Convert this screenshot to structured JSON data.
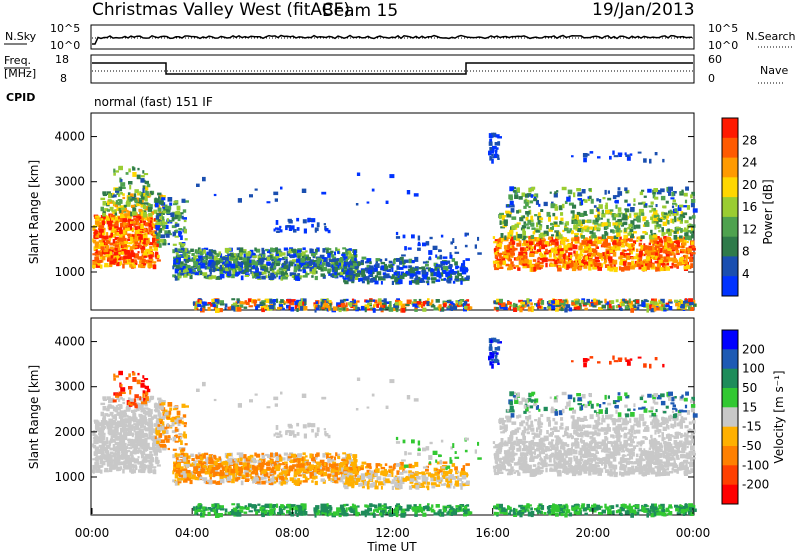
{
  "header": {
    "title": "Christmas Valley West (fitACF)",
    "beam": "Beam 15",
    "date": "19/Jan/2013",
    "cpid_label": "CPID",
    "cpid_value": "normal (fast) 151 IF"
  },
  "panels": {
    "nsky": {
      "left_label": "N.Sky",
      "right_label": "N.Search",
      "left_ticks": [
        "10^5",
        "10^0"
      ],
      "right_ticks": [
        "10^5",
        "10^0"
      ]
    },
    "freq": {
      "left_label_1": "Freq.",
      "left_label_2": "[MHz]",
      "right_label": "Nave",
      "left_ticks": [
        "18",
        "8"
      ],
      "right_ticks": [
        "60",
        "0"
      ]
    }
  },
  "colors": {
    "power": [
      "#0033ff",
      "#1a4fb0",
      "#2f7a4a",
      "#4fa24f",
      "#9acd32",
      "#ffd700",
      "#ff9a00",
      "#ff5a00",
      "#ff1a00"
    ],
    "velocity": [
      "#ff0000",
      "#ff4000",
      "#ff8000",
      "#ffb000",
      "#c8c8c8",
      "#32c832",
      "#1e8c5a",
      "#1e5ab4",
      "#0000ff"
    ]
  },
  "chart_data": [
    {
      "type": "line",
      "title": "N.Sky / N.Search",
      "x_range": [
        "00:00",
        "24:00"
      ],
      "ylim": [
        0,
        100000
      ],
      "series": [
        {
          "name": "N.Sky",
          "values_approx": "fluctuates near 10^3 (noise level)"
        },
        {
          "name": "N.Search",
          "values_approx": "dotted, near 10^3"
        }
      ]
    },
    {
      "type": "line",
      "x": [
        "00:00",
        "03:00",
        "03:00",
        "15:00",
        "15:00",
        "24:00"
      ],
      "series": [
        {
          "name": "Freq.",
          "values": [
            16,
            16,
            10,
            10,
            16,
            16
          ]
        },
        {
          "name": "Nave",
          "values": [
            12,
            12,
            12,
            12,
            12,
            12
          ]
        }
      ],
      "ylim_left": [
        8,
        18
      ],
      "ylim_right": [
        0,
        60
      ]
    },
    {
      "type": "heatmap",
      "ylabel": "Slant Range [km]",
      "yticks": [
        1000,
        2000,
        3000,
        4000
      ],
      "ylim": [
        180,
        4500
      ],
      "colorbar": {
        "label": "Power [dB]",
        "ticks": [
          "4",
          "8",
          "12",
          "16",
          "20",
          "24",
          "28"
        ]
      }
    },
    {
      "type": "heatmap",
      "ylabel": "Slant Range [km]",
      "yticks": [
        1000,
        2000,
        3000,
        4000
      ],
      "ylim": [
        180,
        4500
      ],
      "xlabel": "Time UT",
      "xticks": [
        "00:00",
        "04:00",
        "08:00",
        "12:00",
        "16:00",
        "20:00",
        "00:00"
      ],
      "colorbar": {
        "label": "Velocity [m s⁻¹]",
        "ticks": [
          "200",
          "100",
          "50",
          "15",
          "-15",
          "-50",
          "-100",
          "-200"
        ]
      }
    }
  ]
}
